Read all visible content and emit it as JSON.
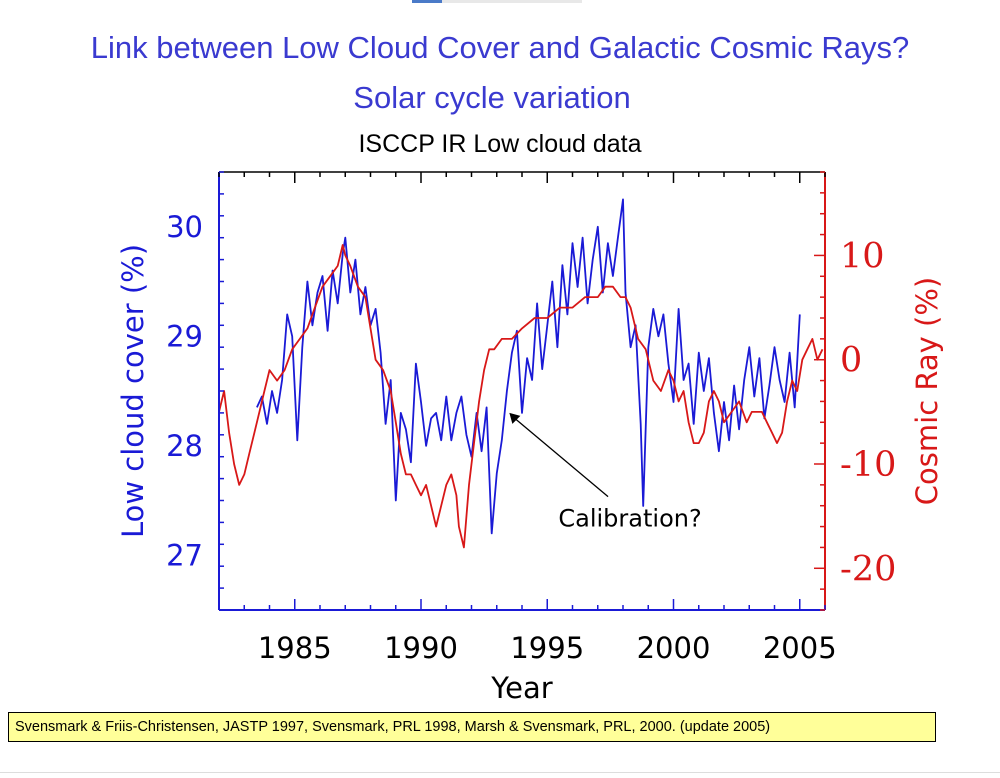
{
  "slide": {
    "title": "Link between Low Cloud Cover and Galactic Cosmic Rays?",
    "subtitle": "Solar cycle variation",
    "dataset": "ISCCP IR Low cloud data",
    "footer": "Svensmark & Friis-Christensen, JASTP 1997, Svensmark, PRL  1998, Marsh & Svensmark, PRL, 2000. (update 2005)"
  },
  "chart_data": {
    "type": "line",
    "title": "ISCCP IR Low cloud data",
    "xlabel": "Year",
    "ylabel_left": "Low cloud cover (%)",
    "ylabel_right": "Cosmic Ray (%)",
    "xlim": [
      1982,
      2006
    ],
    "ylim_left": [
      26.5,
      30.5
    ],
    "ylim_right": [
      -24,
      18
    ],
    "x_ticks": [
      1985,
      1990,
      1995,
      2000,
      2005
    ],
    "x_tick_labels": [
      "1985",
      "1990",
      "1995",
      "2000",
      "2005"
    ],
    "y_left_ticks": [
      27,
      28,
      29,
      30
    ],
    "y_left_tick_labels": [
      "27",
      "28",
      "29",
      "30"
    ],
    "y_right_ticks": [
      -20,
      -10,
      0,
      10
    ],
    "y_right_tick_labels": [
      "-20",
      "-10",
      "0",
      "10"
    ],
    "annotation": {
      "text": "Calibration?",
      "x": 1993.5,
      "y": 28.3,
      "text_x": 1998.2,
      "text_y": 27.28
    },
    "series": [
      {
        "name": "Low cloud cover",
        "axis": "left",
        "color": "#1a1ad6",
        "x": [
          1983.5,
          1983.7,
          1983.9,
          1984.1,
          1984.3,
          1984.5,
          1984.7,
          1984.9,
          1985.1,
          1985.3,
          1985.5,
          1985.7,
          1985.9,
          1986.1,
          1986.3,
          1986.5,
          1986.7,
          1986.9,
          1987.0,
          1987.2,
          1987.4,
          1987.6,
          1987.8,
          1988.0,
          1988.2,
          1988.4,
          1988.6,
          1988.8,
          1989.0,
          1989.2,
          1989.4,
          1989.6,
          1989.8,
          1990.0,
          1990.2,
          1990.4,
          1990.6,
          1990.8,
          1991.0,
          1991.2,
          1991.4,
          1991.6,
          1991.8,
          1992.0,
          1992.2,
          1992.4,
          1992.6,
          1992.8,
          1993.0,
          1993.2,
          1993.4,
          1993.6,
          1993.8,
          1994.0,
          1994.2,
          1994.4,
          1994.6,
          1994.8,
          1995.0,
          1995.2,
          1995.4,
          1995.6,
          1995.8,
          1996.0,
          1996.2,
          1996.4,
          1996.6,
          1996.8,
          1997.0,
          1997.2,
          1997.4,
          1997.6,
          1997.8,
          1998.0,
          1998.1,
          1998.3,
          1998.5,
          1998.7,
          1998.8,
          1999.0,
          1999.2,
          1999.4,
          1999.6,
          1999.8,
          2000.0,
          2000.2,
          2000.4,
          2000.6,
          2000.8,
          2001.0,
          2001.2,
          2001.4,
          2001.6,
          2001.8,
          2002.0,
          2002.2,
          2002.4,
          2002.6,
          2002.8,
          2003.0,
          2003.2,
          2003.4,
          2003.6,
          2003.8,
          2004.0,
          2004.2,
          2004.4,
          2004.6,
          2004.8,
          2005.0
        ],
        "values": [
          28.35,
          28.45,
          28.2,
          28.5,
          28.3,
          28.6,
          29.2,
          29.0,
          28.05,
          28.9,
          29.5,
          29.1,
          29.4,
          29.55,
          29.05,
          29.6,
          29.3,
          29.75,
          29.9,
          29.4,
          29.7,
          29.2,
          29.45,
          29.1,
          29.25,
          28.85,
          28.2,
          28.6,
          27.5,
          28.3,
          28.15,
          27.85,
          28.75,
          28.4,
          28.0,
          28.25,
          28.3,
          28.05,
          28.45,
          28.05,
          28.3,
          28.45,
          28.1,
          27.9,
          28.3,
          27.95,
          28.35,
          27.2,
          27.75,
          28.05,
          28.5,
          28.85,
          29.05,
          28.3,
          28.8,
          28.6,
          29.3,
          28.7,
          29.1,
          29.5,
          28.9,
          29.65,
          29.2,
          29.85,
          29.45,
          29.9,
          29.3,
          29.7,
          30.0,
          29.4,
          29.85,
          29.55,
          29.9,
          30.25,
          29.4,
          28.9,
          29.1,
          28.2,
          27.45,
          28.9,
          29.25,
          29.0,
          29.2,
          28.75,
          28.4,
          29.25,
          28.6,
          28.75,
          28.2,
          28.85,
          28.5,
          28.8,
          28.3,
          27.95,
          28.4,
          28.05,
          28.55,
          28.15,
          28.6,
          28.9,
          28.45,
          28.8,
          28.25,
          28.55,
          28.9,
          28.6,
          28.4,
          28.85,
          28.35,
          29.2
        ]
      },
      {
        "name": "Cosmic Ray",
        "axis": "right",
        "color": "#d81818",
        "x": [
          1982.0,
          1982.2,
          1982.4,
          1982.6,
          1982.8,
          1983.0,
          1983.2,
          1983.4,
          1983.6,
          1983.8,
          1984.0,
          1984.3,
          1984.6,
          1984.9,
          1985.2,
          1985.5,
          1985.8,
          1986.1,
          1986.4,
          1986.7,
          1986.9,
          1987.0,
          1987.2,
          1987.5,
          1987.8,
          1988.0,
          1988.2,
          1988.5,
          1988.8,
          1989.0,
          1989.2,
          1989.4,
          1989.6,
          1989.8,
          1990.0,
          1990.2,
          1990.4,
          1990.6,
          1990.8,
          1991.0,
          1991.2,
          1991.4,
          1991.5,
          1991.7,
          1991.9,
          1992.1,
          1992.3,
          1992.5,
          1992.7,
          1992.9,
          1993.2,
          1993.6,
          1994.0,
          1994.5,
          1995.0,
          1995.5,
          1996.0,
          1996.5,
          1997.0,
          1997.3,
          1997.6,
          1997.9,
          1998.1,
          1998.3,
          1998.6,
          1998.9,
          1999.2,
          1999.5,
          1999.8,
          2000.0,
          2000.2,
          2000.4,
          2000.6,
          2000.8,
          2001.0,
          2001.2,
          2001.4,
          2001.6,
          2001.8,
          2002.0,
          2002.3,
          2002.6,
          2002.9,
          2003.1,
          2003.3,
          2003.5,
          2003.7,
          2003.9,
          2004.1,
          2004.3,
          2004.5,
          2004.7,
          2004.9,
          2005.1,
          2005.3,
          2005.5,
          2005.7,
          2005.9
        ],
        "values": [
          -5,
          -3,
          -7,
          -10,
          -12,
          -11,
          -9,
          -7,
          -5,
          -3,
          -1,
          -2,
          -1,
          1,
          2,
          3,
          5,
          7,
          8,
          9,
          11,
          10,
          9,
          7,
          6,
          3,
          0,
          -1,
          -3,
          -6,
          -9,
          -11,
          -11,
          -12,
          -13,
          -12,
          -14,
          -16,
          -14,
          -12,
          -11,
          -13,
          -16,
          -18,
          -12,
          -8,
          -4,
          -1,
          1,
          1,
          2,
          2,
          3,
          4,
          4,
          5,
          5,
          6,
          6,
          7,
          7,
          6,
          6,
          5,
          2,
          1,
          -2,
          -3,
          -1,
          -2,
          -4,
          -3,
          -6,
          -8,
          -8,
          -7,
          -4,
          -3,
          -4,
          -6,
          -5,
          -4,
          -6,
          -5,
          -5,
          -5,
          -6,
          -7,
          -8,
          -7,
          -4,
          -2,
          -3,
          0,
          1,
          2,
          0,
          1
        ]
      }
    ]
  }
}
